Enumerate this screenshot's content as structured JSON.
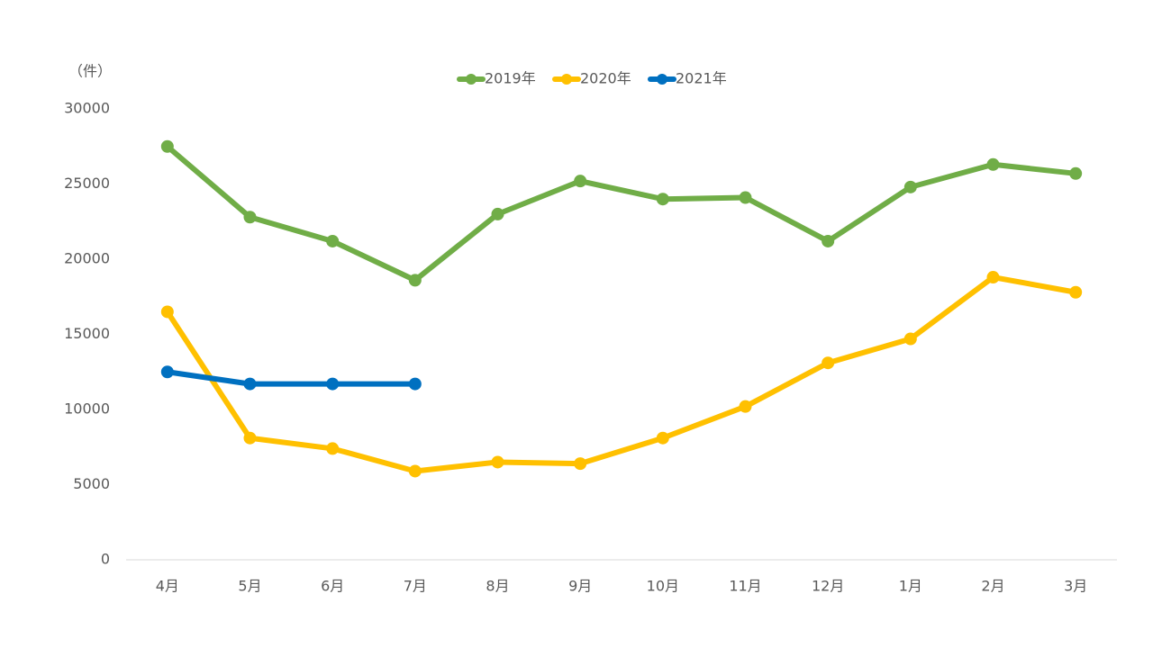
{
  "chart_data": {
    "type": "line",
    "y_label": "（件）",
    "categories": [
      "4月",
      "5月",
      "6月",
      "7月",
      "8月",
      "9月",
      "10月",
      "11月",
      "12月",
      "1月",
      "2月",
      "3月"
    ],
    "series": [
      {
        "name": "2019年",
        "color": "#70ad47",
        "values": [
          27500,
          22800,
          21200,
          18600,
          23000,
          25200,
          24000,
          24100,
          21200,
          24800,
          26300,
          25700
        ]
      },
      {
        "name": "2020年",
        "color": "#ffc000",
        "values": [
          16500,
          8100,
          7400,
          5900,
          6500,
          6400,
          8100,
          10200,
          13100,
          14700,
          18800,
          17800
        ]
      },
      {
        "name": "2021年",
        "color": "#0070c0",
        "values": [
          12500,
          11700,
          11700,
          11700,
          null,
          null,
          null,
          null,
          null,
          null,
          null,
          null
        ]
      }
    ],
    "ylim": [
      0,
      30000
    ],
    "yticks": [
      0,
      5000,
      10000,
      15000,
      20000,
      25000,
      30000
    ],
    "grid": false,
    "legend": "top"
  }
}
